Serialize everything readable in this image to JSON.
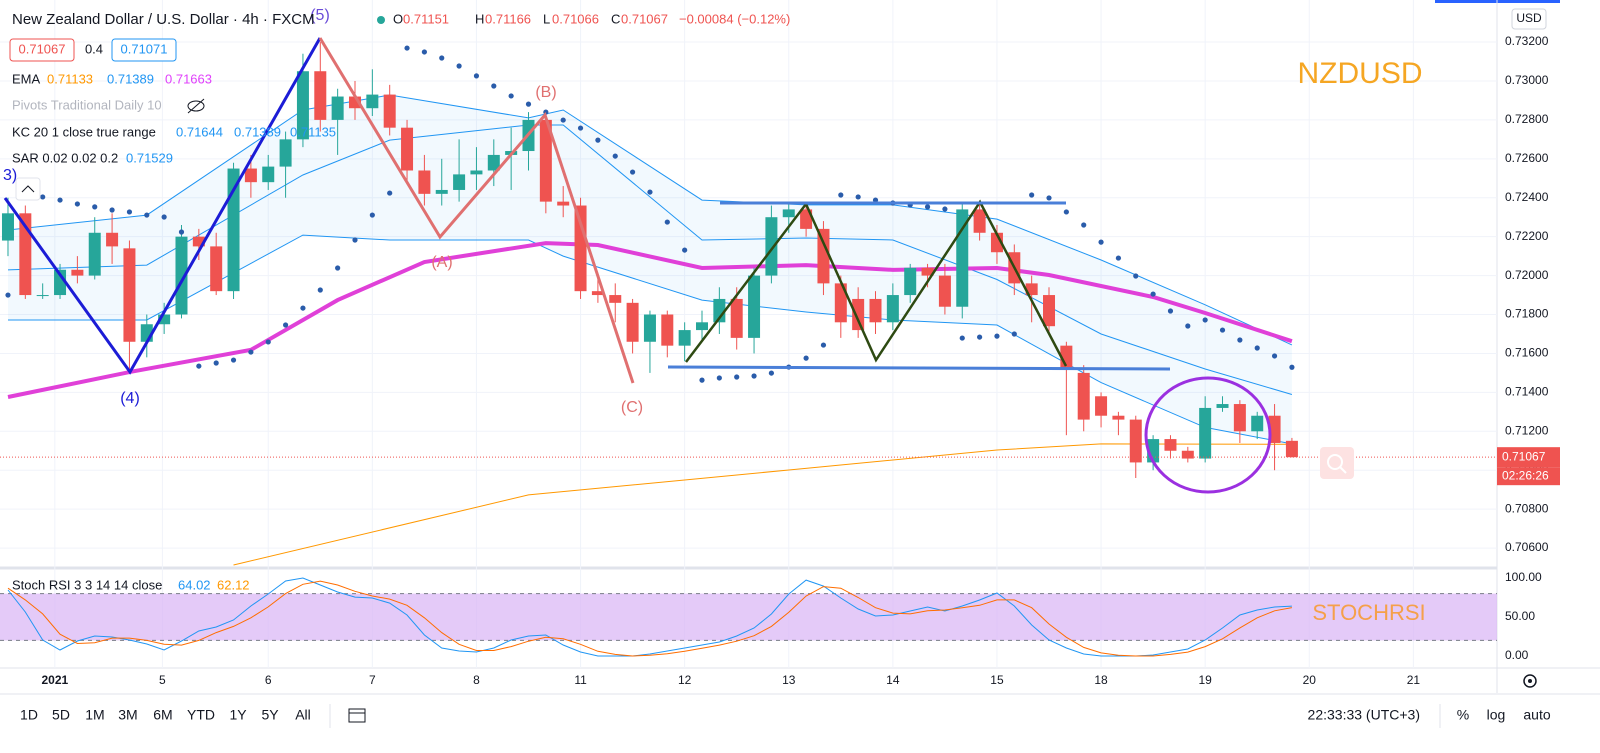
{
  "header": {
    "title": "New Zealand Dollar / U.S. Dollar · 4h · FXCM",
    "ohlc": [
      {
        "key": "O",
        "value": "0.71151"
      },
      {
        "key": "H",
        "value": "0.71166"
      },
      {
        "key": "L",
        "value": "0.71066"
      },
      {
        "key": "C",
        "value": "0.71067"
      }
    ],
    "change": "−0.00084 (−0.12%)",
    "currency": "USD"
  },
  "legend": {
    "price_boxes": [
      "0.71067",
      "0.4",
      "0.71071"
    ],
    "ema": {
      "name": "EMA",
      "values": [
        "0.71133",
        "0.71389",
        "0.71663"
      ]
    },
    "pivots": "Pivots Traditional Daily 10",
    "kc": {
      "name": "KC 20 1 close true range",
      "values": [
        "0.71644",
        "0.71389",
        "0.71135"
      ]
    },
    "sar": {
      "name": "SAR 0.02 0.02 0.2",
      "values": [
        "0.71529"
      ]
    },
    "stoch": {
      "name": "Stoch RSI 3 3 14 14 close",
      "values": [
        "64.02",
        "62.12"
      ]
    }
  },
  "toolbar": {
    "ranges": [
      "1D",
      "5D",
      "1M",
      "3M",
      "6M",
      "YTD",
      "1Y",
      "5Y",
      "All"
    ],
    "clock": "22:33:33 (UTC+3)",
    "options": [
      "%",
      "log",
      "auto"
    ]
  },
  "chart_data": [
    {
      "type": "candlestick",
      "up_color": "#26a69a",
      "down_color": "#ef5350",
      "open": [
        0.7218,
        0.7232,
        0.719,
        0.719,
        0.7203,
        0.72,
        0.7222,
        0.7214,
        0.7166,
        0.7175,
        0.718,
        0.722,
        0.7215,
        0.7192,
        0.7255,
        0.7248,
        0.7256,
        0.727,
        0.7305,
        0.728,
        0.7292,
        0.7286,
        0.7293,
        0.7276,
        0.7254,
        0.7242,
        0.7244,
        0.7252,
        0.7254,
        0.7262,
        0.7264,
        0.728,
        0.7238,
        0.7236,
        0.7192,
        0.719,
        0.7186,
        0.7166,
        0.718,
        0.7164,
        0.7172,
        0.7176,
        0.7188,
        0.7168,
        0.72,
        0.723,
        0.7234,
        0.7224,
        0.7196,
        0.7188,
        0.7188,
        0.7176,
        0.719,
        0.7204,
        0.72,
        0.7184,
        0.7234,
        0.7222,
        0.7212,
        0.7196,
        0.719,
        0.7164,
        0.715,
        0.7138,
        0.7128,
        0.7126,
        0.7104,
        0.7116,
        0.711,
        0.7106,
        0.7132,
        0.7134,
        0.712,
        0.7128,
        0.71151
      ],
      "high": [
        0.724,
        0.7236,
        0.7196,
        0.7206,
        0.721,
        0.723,
        0.7232,
        0.7218,
        0.718,
        0.7186,
        0.7226,
        0.7224,
        0.7222,
        0.7258,
        0.7262,
        0.7262,
        0.7274,
        0.7314,
        0.732,
        0.7296,
        0.73,
        0.7306,
        0.7298,
        0.728,
        0.7262,
        0.726,
        0.727,
        0.7266,
        0.727,
        0.7276,
        0.7284,
        0.7284,
        0.7246,
        0.724,
        0.72,
        0.7196,
        0.7188,
        0.7182,
        0.7182,
        0.7176,
        0.7182,
        0.7194,
        0.7194,
        0.7204,
        0.7236,
        0.7238,
        0.7238,
        0.7228,
        0.72,
        0.7194,
        0.7192,
        0.7196,
        0.7206,
        0.7206,
        0.7206,
        0.7238,
        0.7238,
        0.7226,
        0.7216,
        0.72,
        0.7194,
        0.7166,
        0.7154,
        0.714,
        0.713,
        0.7128,
        0.7118,
        0.7118,
        0.7112,
        0.7138,
        0.7138,
        0.7136,
        0.713,
        0.7134,
        0.71166
      ],
      "low": [
        0.721,
        0.7188,
        0.7188,
        0.7188,
        0.7196,
        0.7198,
        0.7206,
        0.715,
        0.7158,
        0.717,
        0.7178,
        0.7208,
        0.719,
        0.7188,
        0.724,
        0.7244,
        0.724,
        0.7266,
        0.7274,
        0.7262,
        0.728,
        0.7282,
        0.7272,
        0.7248,
        0.7236,
        0.7236,
        0.7238,
        0.7244,
        0.7246,
        0.7244,
        0.7254,
        0.7232,
        0.723,
        0.7188,
        0.7186,
        0.7176,
        0.716,
        0.715,
        0.7158,
        0.7156,
        0.7166,
        0.717,
        0.7162,
        0.716,
        0.7196,
        0.7222,
        0.722,
        0.719,
        0.7168,
        0.7168,
        0.717,
        0.7172,
        0.7186,
        0.7194,
        0.718,
        0.7178,
        0.7218,
        0.7206,
        0.719,
        0.7176,
        0.717,
        0.7118,
        0.712,
        0.7122,
        0.7118,
        0.7096,
        0.71,
        0.7106,
        0.7104,
        0.7104,
        0.713,
        0.7114,
        0.7116,
        0.71,
        0.71066
      ],
      "close": [
        0.7232,
        0.719,
        0.719,
        0.7203,
        0.72,
        0.7222,
        0.7215,
        0.7166,
        0.7175,
        0.718,
        0.722,
        0.7215,
        0.7192,
        0.7255,
        0.7248,
        0.7256,
        0.727,
        0.7305,
        0.728,
        0.7292,
        0.7286,
        0.7293,
        0.7276,
        0.7254,
        0.7242,
        0.7244,
        0.7252,
        0.7254,
        0.7262,
        0.7264,
        0.728,
        0.7238,
        0.7236,
        0.7192,
        0.719,
        0.7186,
        0.7166,
        0.718,
        0.7164,
        0.7172,
        0.7176,
        0.7188,
        0.7168,
        0.72,
        0.723,
        0.7234,
        0.7224,
        0.7196,
        0.7176,
        0.7172,
        0.7176,
        0.719,
        0.7204,
        0.72,
        0.7184,
        0.7234,
        0.7222,
        0.7212,
        0.7196,
        0.719,
        0.7174,
        0.7152,
        0.7126,
        0.7128,
        0.7126,
        0.7104,
        0.7116,
        0.711,
        0.7106,
        0.7132,
        0.7134,
        0.712,
        0.7128,
        0.7114,
        0.71067
      ],
      "xlim": [
        -0.46,
        85.82
      ],
      "xticks": [
        {
          "value": 2.7,
          "label": "2021"
        },
        {
          "value": 8.9,
          "label": "5"
        },
        {
          "value": 15,
          "label": "6"
        },
        {
          "value": 21,
          "label": "7"
        },
        {
          "value": 27,
          "label": "8"
        },
        {
          "value": 33,
          "label": "11"
        },
        {
          "value": 39,
          "label": "12"
        },
        {
          "value": 45,
          "label": "13"
        },
        {
          "value": 51,
          "label": "14"
        },
        {
          "value": 57,
          "label": "15"
        },
        {
          "value": 63,
          "label": "18"
        },
        {
          "value": 69,
          "label": "19"
        },
        {
          "value": 75,
          "label": "20"
        },
        {
          "value": 81,
          "label": "21"
        }
      ],
      "ylim": [
        0.70513,
        0.73416
      ],
      "yticks": [
        {
          "value": 0.706,
          "label": "0.70600"
        },
        {
          "value": 0.708,
          "label": "0.70800"
        },
        {
          "value": 0.71,
          "label": "0.71000"
        },
        {
          "value": 0.712,
          "label": "0.71200"
        },
        {
          "value": 0.714,
          "label": "0.71400"
        },
        {
          "value": 0.716,
          "label": "0.71600"
        },
        {
          "value": 0.718,
          "label": "0.71800"
        },
        {
          "value": 0.72,
          "label": "0.72000"
        },
        {
          "value": 0.722,
          "label": "0.72200"
        },
        {
          "value": 0.724,
          "label": "0.72400"
        },
        {
          "value": 0.726,
          "label": "0.72600"
        },
        {
          "value": 0.728,
          "label": "0.72800"
        },
        {
          "value": 0.73,
          "label": "0.73000"
        },
        {
          "value": 0.732,
          "label": "0.73200"
        }
      ],
      "grid": true,
      "channel": {
        "color": "#2196f3",
        "x": [
          0,
          8,
          17,
          22,
          30,
          32,
          40,
          46,
          51,
          57,
          63,
          69,
          74
        ],
        "upper": [
          0.72234,
          0.72311,
          0.72851,
          0.72928,
          0.7281,
          0.72851,
          0.72388,
          0.72363,
          0.72363,
          0.7229,
          0.7208,
          0.7185,
          0.71644
        ],
        "middle": [
          0.72029,
          0.72054,
          0.72517,
          0.72696,
          0.72774,
          0.72774,
          0.72183,
          0.72193,
          0.72183,
          0.7198,
          0.717,
          0.7152,
          0.71389
        ],
        "lower": [
          0.71772,
          0.71772,
          0.72208,
          0.72183,
          0.72183,
          0.721,
          0.71874,
          0.71813,
          0.71772,
          0.71746,
          0.7145,
          0.7122,
          0.71135
        ]
      },
      "series": [
        {
          "color": "#e040d8",
          "width": 4,
          "x": [
            0,
            7,
            14,
            19,
            24,
            31,
            34,
            40,
            46,
            51,
            57,
            60,
            66,
            69,
            74
          ],
          "values": [
            0.71376,
            0.71504,
            0.71618,
            0.71874,
            0.7207,
            0.72167,
            0.72157,
            0.72039,
            0.72054,
            0.72029,
            0.72039,
            0.72003,
            0.7189,
            0.71808,
            0.71663
          ]
        },
        {
          "color": "#ff9800",
          "width": 1,
          "x": [
            13,
            30,
            45,
            57,
            63,
            74
          ],
          "values": [
            0.70513,
            0.70873,
            0.71001,
            0.71104,
            0.71135,
            0.71133
          ]
        }
      ],
      "sar": {
        "color": "#2a5caa",
        "values": [
          0.719,
          0.72424,
          0.72404,
          0.72388,
          0.72368,
          0.72353,
          0.72337,
          0.72327,
          0.72311,
          0.72301,
          0.72224,
          0.71535,
          0.71551,
          0.71566,
          0.71607,
          0.71659,
          0.71746,
          0.71833,
          0.71926,
          0.72039,
          0.72183,
          0.72311,
          0.72424,
          0.73169,
          0.73149,
          0.73118,
          0.73077,
          0.73026,
          0.72974,
          0.72923,
          0.72881,
          0.7284,
          0.72799,
          0.72758,
          0.72696,
          0.72614,
          0.72532,
          0.72429,
          0.72275,
          0.72131,
          0.71463,
          0.71474,
          0.71479,
          0.71484,
          0.71499,
          0.7153,
          0.71576,
          0.71643,
          0.72414,
          0.72404,
          0.72388,
          0.72373,
          0.72363,
          0.72353,
          0.72342,
          0.71679,
          0.71684,
          0.71689,
          0.717,
          0.72414,
          0.72399,
          0.72327,
          0.7226,
          0.72172,
          0.7209,
          0.71998,
          0.71905,
          0.71818,
          0.71741,
          0.71772,
          0.7172,
          0.71669,
          0.71628,
          0.71587,
          0.71529
        ]
      },
      "last_price": {
        "value": 0.71067,
        "label": "0.71067"
      },
      "countdown": "02:26:26",
      "annotations": [
        "3)",
        "(4)",
        "(5)",
        "(A)",
        "(B)",
        "(C)",
        "NZDUSD"
      ]
    },
    {
      "type": "line",
      "xlim": [
        -0.46,
        85.82
      ],
      "ylim": [
        -15.4,
        110.3
      ],
      "yticks": [
        {
          "value": 100,
          "label": "100.00"
        },
        {
          "value": 50,
          "label": "50.00"
        },
        {
          "value": 0,
          "label": "0.00"
        }
      ],
      "band": [
        20,
        80
      ],
      "band_color": "#d9b3f5",
      "series": [
        {
          "color": "#2196f3",
          "values": [
            84.6,
            56.4,
            20.5,
            7.7,
            19.2,
            25.6,
            24.4,
            20.5,
            15.4,
            7.7,
            19.2,
            32.1,
            37.2,
            46.2,
            64.1,
            79.5,
            96.2,
            100,
            91,
            82.1,
            75.6,
            74.4,
            67.9,
            52.6,
            26.9,
            10.3,
            6.4,
            5.1,
            10.3,
            20.5,
            25.6,
            26.9,
            14.1,
            5.1,
            0,
            0,
            0,
            2.6,
            6.4,
            10.3,
            14.1,
            17.9,
            25.6,
            35.9,
            53.8,
            79.5,
            97.4,
            89.7,
            74.4,
            60.3,
            51.3,
            52.6,
            57.7,
            62.8,
            57.7,
            64.1,
            71.8,
            80.8,
            64.1,
            39.7,
            20.5,
            10.3,
            2.6,
            0,
            0,
            0,
            1.3,
            5.1,
            9,
            20.5,
            35.9,
            52.6,
            59,
            62.8,
            64.02
          ]
        },
        {
          "color": "#ff6d00",
          "values": [
            87,
            72,
            54,
            28,
            16,
            17,
            23,
            23,
            20,
            15,
            14,
            20,
            30,
            38,
            49,
            63,
            80,
            92,
            96,
            91,
            83,
            77,
            73,
            65,
            49,
            30,
            15,
            7,
            7,
            12,
            19,
            24,
            22,
            15,
            6,
            2,
            0,
            1,
            3,
            6,
            10,
            14,
            19,
            26,
            38,
            56,
            77,
            89,
            87,
            75,
            62,
            55,
            54,
            58,
            59,
            62,
            65,
            72,
            72,
            62,
            41,
            24,
            11,
            4,
            1,
            0,
            0,
            2,
            5,
            12,
            22,
            36,
            49,
            58,
            62.12
          ]
        }
      ],
      "annotations": [
        "STOCHRSI"
      ]
    }
  ]
}
